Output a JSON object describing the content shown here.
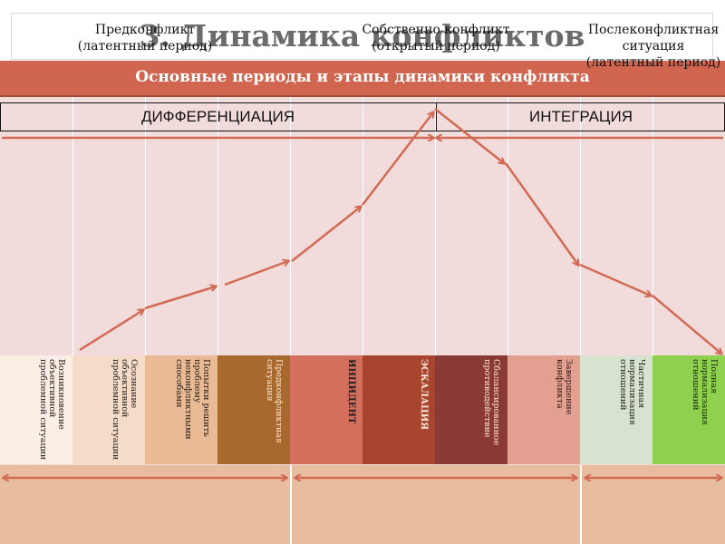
{
  "title": "3. Динамика конфликтов",
  "banner": "Основные периоды и этапы динамики конфликта",
  "phases": {
    "differentiation": "ДИФФЕРЕНЦИАЦИЯ",
    "integration": "ИНТЕГРАЦИЯ"
  },
  "stages": [
    {
      "label": "Возникновение объективной проблемной ситуации",
      "color": "#fbeee4"
    },
    {
      "label": "Осознание объективной проблемной ситуации",
      "color": "#f5dcc8"
    },
    {
      "label": "Попытки решить проблему неконфликтными способами",
      "color": "#e8bb96"
    },
    {
      "label": "Предконфликтная ситуация",
      "color": "#a7692e"
    },
    {
      "label": "ИНЦИДЕНТ",
      "color": "#d46f5d"
    },
    {
      "label": "ЭСКАЛАЦИЯ",
      "color": "#a8452f"
    },
    {
      "label": "Сбалансированное противодействие",
      "color": "#8a3a34"
    },
    {
      "label": "Завершение конфликта",
      "color": "#e39f90"
    },
    {
      "label": "Частичная нормализация отношений",
      "color": "#d7e3d0"
    },
    {
      "label": "Полная нормализация отношений",
      "color": "#8fd14f"
    }
  ],
  "periods": [
    {
      "line1": "Предконфликт",
      "line2": "(латентный период)"
    },
    {
      "line1": "Собственно конфликт",
      "line2": "(открытый период)"
    },
    {
      "line1": "Послеконфликтная ситуация",
      "line2": "(латентный период)"
    }
  ],
  "colors": {
    "arrow": "#d26a55",
    "banner": "#d06550",
    "grid": "#f2dcdb",
    "bottom": "#e8bd9f"
  }
}
